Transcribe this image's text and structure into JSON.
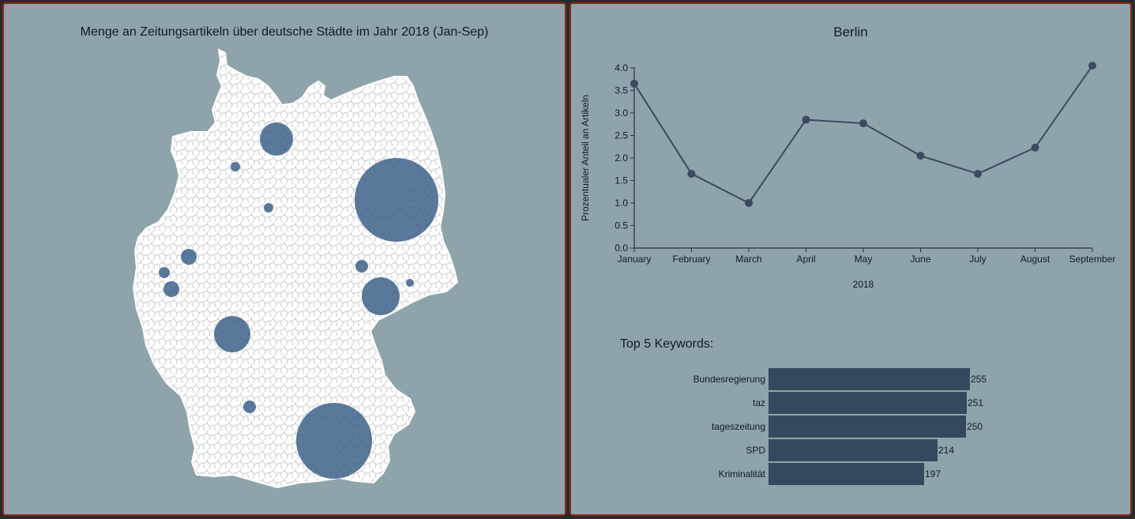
{
  "map": {
    "title": "Menge an Zeitungsartikeln über deutsche Städte im Jahr 2018 (Jan-Sep)",
    "bubble_color": "#3d6289",
    "land_color": "#ffffff"
  },
  "detail": {
    "city": "Berlin",
    "keywords_title": "Top 5 Keywords:"
  },
  "chart_data": [
    {
      "type": "line",
      "title": "Berlin",
      "xlabel": "2018",
      "ylabel": "Prozentualer Anteil an Artikeln",
      "x": [
        "January",
        "February",
        "March",
        "April",
        "May",
        "June",
        "July",
        "August",
        "September"
      ],
      "series": [
        {
          "values": [
            3.65,
            1.65,
            1.0,
            2.85,
            2.77,
            2.05,
            1.65,
            2.23,
            4.05
          ]
        }
      ],
      "ylim": [
        0,
        4.0
      ],
      "yticks": [
        "0.0",
        "0.5",
        "1.0",
        "1.5",
        "2.0",
        "2.5",
        "3.0",
        "3.5",
        "4.0"
      ],
      "color": "#3b4a5e"
    },
    {
      "type": "bar",
      "orientation": "horizontal",
      "title": "Top 5 Keywords:",
      "categories": [
        "Bundesregierung",
        "taz",
        "tageszeitung",
        "SPD",
        "Kriminalität"
      ],
      "values": [
        255,
        251,
        250,
        214,
        197
      ],
      "color": "#34495e"
    }
  ]
}
